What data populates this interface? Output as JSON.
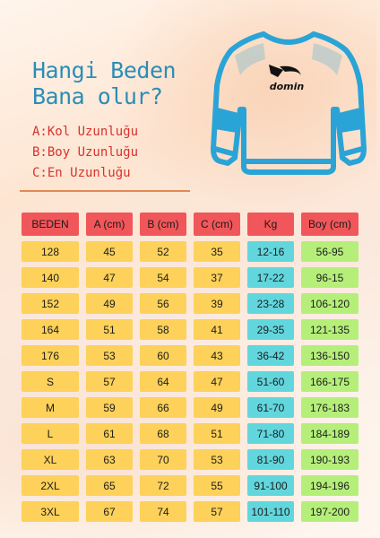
{
  "heading": {
    "line1": "Hangi Beden",
    "line2": "Bana olur?"
  },
  "dimensions": [
    "A:Kol Uzunluğu",
    "B:Boy Uzunluğu",
    "C:En Uzunluğu"
  ],
  "brand": {
    "logo_text": "domin"
  },
  "colors": {
    "header": "#f1575a",
    "size_cols": "#fdd15a",
    "kg_col": "#62d6dd",
    "boy_col": "#b5ef7a",
    "heading": "#2b8db8",
    "dimensions": "#d6322e",
    "shirt_outline": "#2aa4d6"
  },
  "table": {
    "headers": [
      "BEDEN",
      "A (cm)",
      "B (cm)",
      "C (cm)",
      "Kg",
      "Boy (cm)"
    ],
    "rows": [
      [
        "128",
        "45",
        "52",
        "35",
        "12-16",
        "56-95"
      ],
      [
        "140",
        "47",
        "54",
        "37",
        "17-22",
        "96-15"
      ],
      [
        "152",
        "49",
        "56",
        "39",
        "23-28",
        "106-120"
      ],
      [
        "164",
        "51",
        "58",
        "41",
        "29-35",
        "121-135"
      ],
      [
        "176",
        "53",
        "60",
        "43",
        "36-42",
        "136-150"
      ],
      [
        "S",
        "57",
        "64",
        "47",
        "51-60",
        "166-175"
      ],
      [
        "M",
        "59",
        "66",
        "49",
        "61-70",
        "176-183"
      ],
      [
        "L",
        "61",
        "68",
        "51",
        "71-80",
        "184-189"
      ],
      [
        "XL",
        "63",
        "70",
        "53",
        "81-90",
        "190-193"
      ],
      [
        "2XL",
        "65",
        "72",
        "55",
        "91-100",
        "194-196"
      ],
      [
        "3XL",
        "67",
        "74",
        "57",
        "101-110",
        "197-200"
      ]
    ]
  }
}
